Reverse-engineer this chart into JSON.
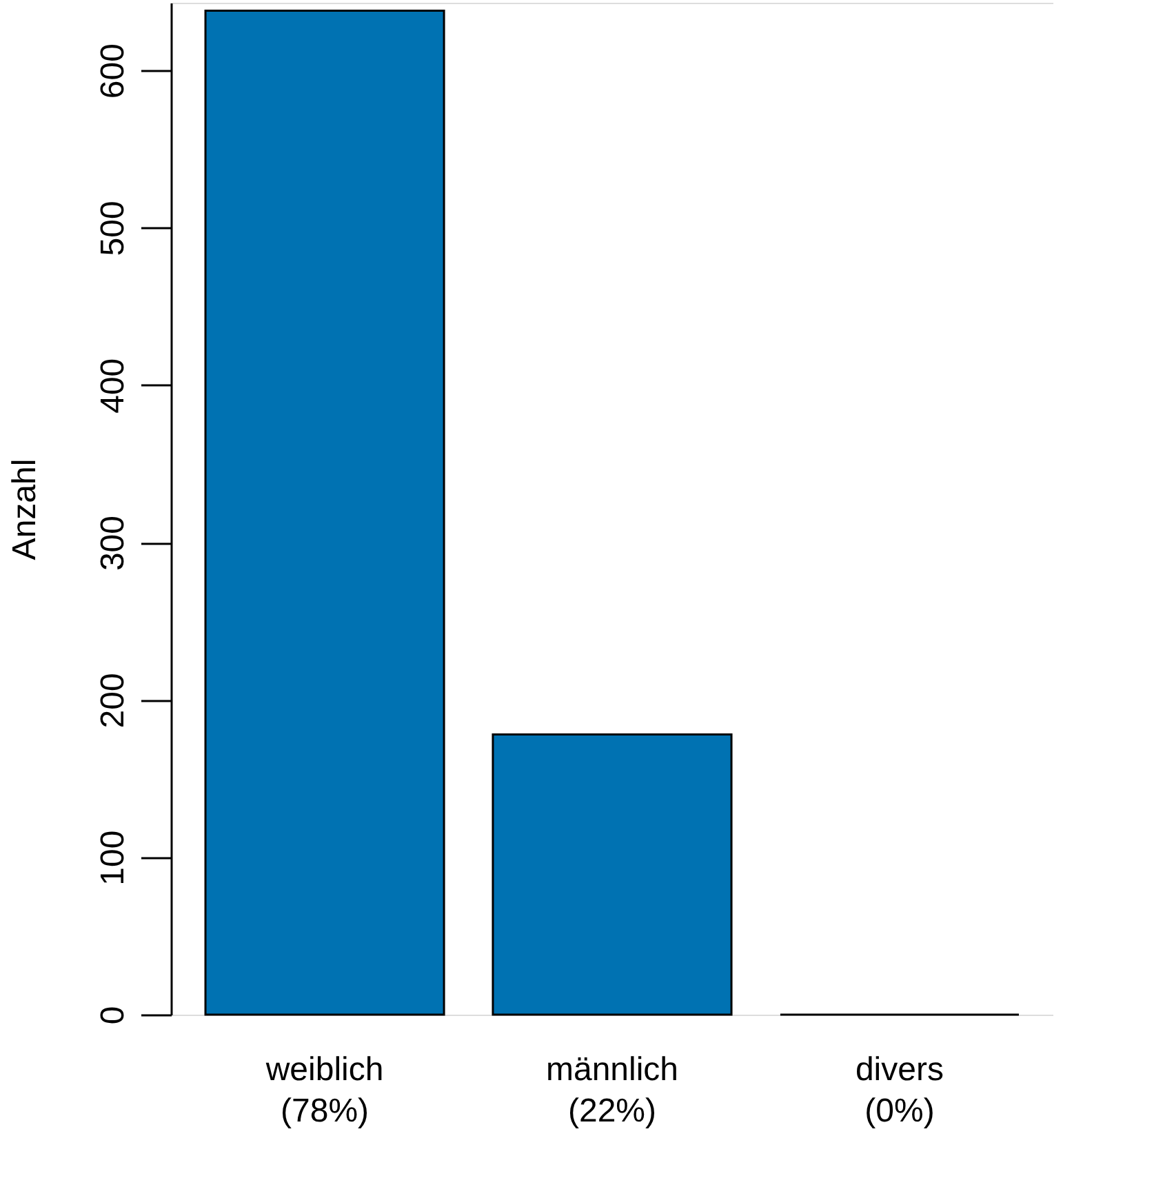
{
  "chart_data": {
    "type": "bar",
    "ylabel": "Anzahl",
    "categories": [
      "weiblich\n(78%)",
      "männlich\n(22%)",
      "divers\n(0%)"
    ],
    "values": [
      638,
      178,
      0
    ],
    "color": "#0072b2",
    "ylim": [
      0,
      643
    ],
    "yticks": [
      0,
      100,
      200,
      300,
      400,
      500,
      600
    ],
    "grid": false
  }
}
